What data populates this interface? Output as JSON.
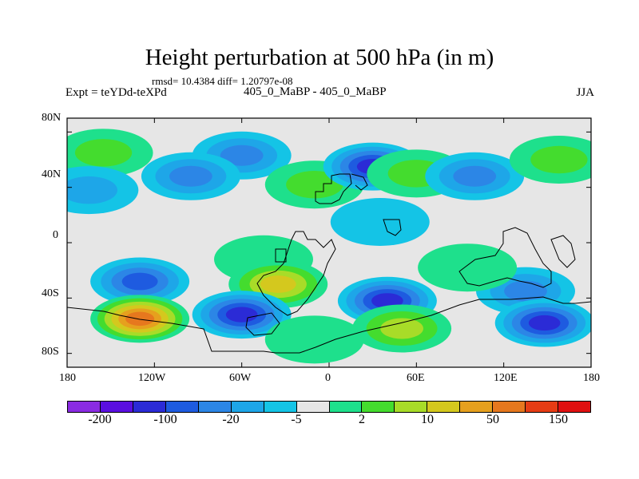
{
  "chart_data": {
    "type": "heatmap",
    "title": "Height perturbation at 500 hPa (in m)",
    "stats_line": "rmsd= 10.4384 diff= 1.20797e-08",
    "left_label": "Expt = teYDd-teXPd",
    "center_label": "405_0_MaBP - 405_0_MaBP",
    "right_label": "JJA",
    "x_axis": {
      "range": [
        -180,
        180
      ],
      "ticks": [
        -180,
        -120,
        -60,
        0,
        60,
        120,
        180
      ],
      "tick_labels": [
        "180",
        "120W",
        "60W",
        "0",
        "60E",
        "120E",
        "180"
      ]
    },
    "y_axis": {
      "range": [
        -90,
        90
      ],
      "ticks": [
        80,
        40,
        0,
        -40,
        -80
      ],
      "tick_labels": [
        "80N",
        "40N",
        "0",
        "40S",
        "80S"
      ]
    },
    "colorbar": {
      "colors": [
        "#8a2be2",
        "#5a0fe0",
        "#2b2bd6",
        "#1e5be0",
        "#2c86e6",
        "#1ea6e8",
        "#14c4e6",
        "#e6e6e6",
        "#1ee08c",
        "#44dc2e",
        "#a8dc28",
        "#d4c81e",
        "#e6a01e",
        "#e6781e",
        "#e63c14",
        "#e01010"
      ],
      "tick_labels": [
        "-200",
        "-100",
        "-20",
        "-5",
        "2",
        "10",
        "50",
        "150"
      ]
    },
    "blobs": [
      {
        "lon": -155,
        "lat": 65,
        "value": 15
      },
      {
        "lon": -60,
        "lat": 63,
        "value": -12
      },
      {
        "lon": -95,
        "lat": 48,
        "value": -15
      },
      {
        "lon": -10,
        "lat": 42,
        "value": 10
      },
      {
        "lon": 30,
        "lat": 55,
        "value": -40
      },
      {
        "lon": 60,
        "lat": 50,
        "value": 14
      },
      {
        "lon": 100,
        "lat": 48,
        "value": -14
      },
      {
        "lon": 158,
        "lat": 60,
        "value": 18
      },
      {
        "lon": -165,
        "lat": 38,
        "value": -5
      },
      {
        "lon": 35,
        "lat": 15,
        "value": -3
      },
      {
        "lon": -45,
        "lat": -12,
        "value": 6
      },
      {
        "lon": -130,
        "lat": -28,
        "value": -25
      },
      {
        "lon": -35,
        "lat": -30,
        "value": 30
      },
      {
        "lon": 40,
        "lat": -42,
        "value": -45
      },
      {
        "lon": 135,
        "lat": -35,
        "value": -12
      },
      {
        "lon": -130,
        "lat": -55,
        "value": 80
      },
      {
        "lon": -60,
        "lat": -52,
        "value": -40
      },
      {
        "lon": 50,
        "lat": -62,
        "value": 25
      },
      {
        "lon": 148,
        "lat": -58,
        "value": -55
      },
      {
        "lon": 95,
        "lat": -18,
        "value": 6
      },
      {
        "lon": -10,
        "lat": -70,
        "value": 8
      }
    ]
  }
}
